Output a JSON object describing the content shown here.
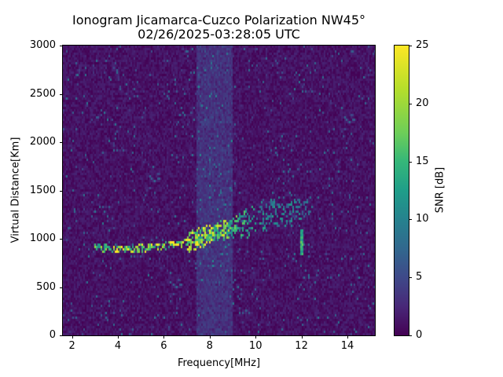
{
  "chart_data": {
    "type": "heatmap",
    "title": "Ionogram Jicamarca-Cuzco Polarization NW45°",
    "subtitle": "02/26/2025-03:28:05 UTC",
    "xlabel": "Frequency[MHz]",
    "ylabel": "Virtual Distance[Km]",
    "xlim": [
      1.6,
      15.2
    ],
    "ylim": [
      0,
      3000
    ],
    "xticks": [
      2,
      4,
      6,
      8,
      10,
      12,
      14
    ],
    "yticks": [
      0,
      500,
      1000,
      1500,
      2000,
      2500,
      3000
    ],
    "colorbar": {
      "label": "SNR [dB]",
      "range": [
        0,
        25
      ],
      "ticks": [
        0,
        5,
        10,
        15,
        20,
        25
      ],
      "colormap": "viridis"
    },
    "grid": false,
    "features": {
      "main_echo_trace": [
        {
          "freq": 3.0,
          "distance": 910,
          "snr": 20
        },
        {
          "freq": 4.0,
          "distance": 890,
          "snr": 25
        },
        {
          "freq": 5.0,
          "distance": 900,
          "snr": 25
        },
        {
          "freq": 6.0,
          "distance": 920,
          "snr": 25
        },
        {
          "freq": 7.0,
          "distance": 960,
          "snr": 25
        },
        {
          "freq": 8.0,
          "distance": 1040,
          "snr": 25
        },
        {
          "freq": 8.8,
          "distance": 1100,
          "snr": 22
        },
        {
          "freq": 10.0,
          "distance": 1200,
          "snr": 15
        },
        {
          "freq": 11.0,
          "distance": 1280,
          "snr": 14
        },
        {
          "freq": 12.0,
          "distance": 1300,
          "snr": 12
        },
        {
          "freq": 12.5,
          "distance": 1280,
          "snr": 10
        }
      ],
      "vertical_interference_band_MHz": [
        7.4,
        9.0
      ],
      "vertical_spike": {
        "freq": 12.0,
        "distance_range": [
          820,
          1100
        ],
        "snr": 20
      },
      "background_snr": 1
    }
  }
}
